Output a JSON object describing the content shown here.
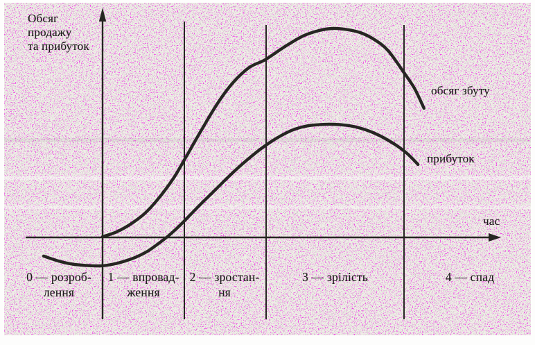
{
  "figure": {
    "y_axis_title_lines": [
      "Обсяг",
      "продажу",
      "та прибуток"
    ],
    "x_axis_title": "час",
    "sales_curve_label": "обсяг збуту",
    "profit_curve_label": "прибуток",
    "phase_labels": [
      {
        "line1": "0 — розроб-",
        "line2": "лення"
      },
      {
        "line1": "1 — впровад-",
        "line2": "ження"
      },
      {
        "line1": "2 — зростан-",
        "line2": "ня"
      },
      {
        "line1": "3 — зрілість",
        "line2": ""
      },
      {
        "line1": "4 — спад",
        "line2": ""
      }
    ]
  },
  "colors": {
    "ink": "#282624",
    "text": "#1e1d1c",
    "paper": "#f0ede8",
    "speckle_magenta": "#e60cd2",
    "speckle_gray": "#908d8a",
    "page_margin": "#fdfdfc"
  },
  "chart_data": {
    "type": "line",
    "title": "",
    "xlabel": "час",
    "ylabel": "Обсяг продажу та прибуток",
    "x_unit": "time, arbitrary units (origin = y-axis; phase boundaries at 0, 2.06, 4.11, 7.58)",
    "y_unit": "arbitrary units (x-axis = 0, sales peak = 100)",
    "grid": "vertical phase-boundary lines only, no numeric ticks",
    "legend_position": "inline labels at right ends of curves",
    "phases": [
      {
        "index": 0,
        "label": "розроблення",
        "x_range": [
          -2.5,
          0
        ]
      },
      {
        "index": 1,
        "label": "впровадження",
        "x_range": [
          0,
          2.06
        ]
      },
      {
        "index": 2,
        "label": "зростання",
        "x_range": [
          2.06,
          4.11
        ]
      },
      {
        "index": 3,
        "label": "зрілість",
        "x_range": [
          4.11,
          7.58
        ]
      },
      {
        "index": 4,
        "label": "спад",
        "x_range": [
          7.58,
          10.8
        ]
      }
    ],
    "series": [
      {
        "key": "sales",
        "name": "обсяг збуту",
        "x": [
          0,
          0.35,
          0.7,
          1.05,
          1.39,
          1.78,
          2.06,
          2.47,
          2.89,
          3.28,
          3.69,
          4.09,
          4.56,
          5.03,
          5.44,
          5.78,
          6.13,
          6.48,
          6.83,
          7.18,
          7.58,
          7.84,
          8.08
        ],
        "y": [
          0,
          2.3,
          6,
          11,
          18,
          28,
          37,
          50.7,
          64,
          74,
          81.3,
          85,
          91,
          96.3,
          99,
          100,
          99.5,
          98,
          94.7,
          89.3,
          78.7,
          71.3,
          61.7
        ]
      },
      {
        "key": "profit",
        "name": "прибуток",
        "x": [
          -1.48,
          -1.1,
          -0.75,
          -0.4,
          -0.05,
          0.26,
          0.56,
          0.85,
          1.13,
          1.39,
          1.66,
          1.92,
          2.18,
          2.47,
          2.77,
          3.07,
          3.36,
          3.66,
          3.95,
          4.25,
          4.55,
          4.84,
          5.14,
          5.44,
          5.78,
          6.13,
          6.45,
          6.76,
          7.07,
          7.39,
          7.67,
          7.93
        ],
        "y": [
          -9.3,
          -11.7,
          -13.2,
          -13.8,
          -14,
          -13.2,
          -11.7,
          -9.7,
          -7,
          -3.5,
          0.5,
          5,
          10,
          15.7,
          21.3,
          27,
          32.3,
          37.3,
          41.8,
          45.8,
          49.2,
          51.7,
          53.2,
          53.8,
          54,
          53.5,
          52.3,
          50.3,
          47.5,
          43.8,
          39.7,
          34.7
        ]
      }
    ]
  }
}
